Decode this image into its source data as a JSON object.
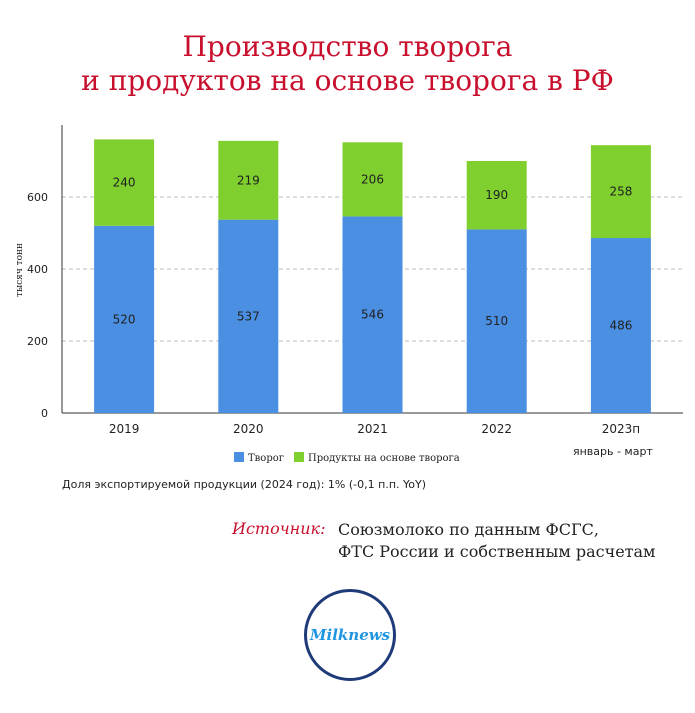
{
  "title": {
    "line1": "Производство творога",
    "line2": "и продуктов на основе творога в РФ"
  },
  "chart_data": {
    "type": "bar",
    "stacked": true,
    "categories": [
      "2019",
      "2020",
      "2021",
      "2022",
      "2023п"
    ],
    "series": [
      {
        "name": "Творог",
        "values": [
          520,
          537,
          546,
          510,
          486
        ],
        "color": "#4a8fe2"
      },
      {
        "name": "Продукты на основе творога",
        "values": [
          240,
          219,
          206,
          190,
          258
        ],
        "color": "#7fcf2e"
      }
    ],
    "ylabel": "тысяч тонн",
    "ylim": [
      0,
      800
    ],
    "yticks": [
      0,
      200,
      400,
      600
    ],
    "grid": true,
    "legend": "bottom",
    "annotation": "январь - март"
  },
  "note": "Доля экспортируемой продукции (2024 год):  1% (-0,1 п.п. YoY)",
  "source": {
    "label": "Источник:",
    "line1": "Союзмолоко по данным ФСГС,",
    "line2": "ФТС России и собственным расчетам"
  },
  "logo": {
    "text": "Milknews",
    "icon": "milknews-logo"
  }
}
